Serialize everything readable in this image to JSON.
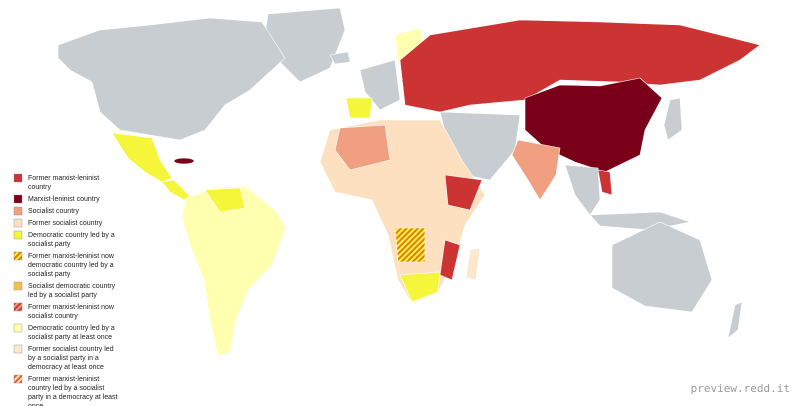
{
  "legend": [
    {
      "lines": [
        "Former marxist-leninist",
        "country"
      ],
      "color": "#cc3333"
    },
    {
      "lines": [
        "Marxist-leninist country"
      ],
      "color": "#7a0019"
    },
    {
      "lines": [
        "Socialist country"
      ],
      "color": "#f0a080"
    },
    {
      "lines": [
        "Former socialist country"
      ],
      "color": "#fde0c0"
    },
    {
      "lines": [
        "Democratic country led by a",
        "socialist party"
      ],
      "color": "#f5f53a"
    },
    {
      "lines": [
        "Former marxist-leninist now",
        "democratic country led by a",
        "socialist party"
      ],
      "color": "#f5f53a",
      "hatch_color": "#e07b20"
    },
    {
      "lines": [
        "Socialist democratic country",
        "led by a socialist party"
      ],
      "color": "#f5c050"
    },
    {
      "lines": [
        "Former marxist-leninist now",
        "socialist country"
      ],
      "color": "#f0a080",
      "hatch_color": "#cc3333"
    },
    {
      "lines": [
        "Democratic country led by a",
        "socialist party at least once"
      ],
      "color": "#ffffb0"
    },
    {
      "lines": [
        "Former socialist country led",
        "by a socialist party in a",
        "democracy at least once"
      ],
      "color": "#fce8cc"
    },
    {
      "lines": [
        "Former marxist-leninist",
        "country led by a socialist",
        "party in a democracy at least",
        "once"
      ],
      "color": "#fde0c0",
      "hatch_color": "#e06030"
    }
  ],
  "watermark": "preview.redd.it"
}
